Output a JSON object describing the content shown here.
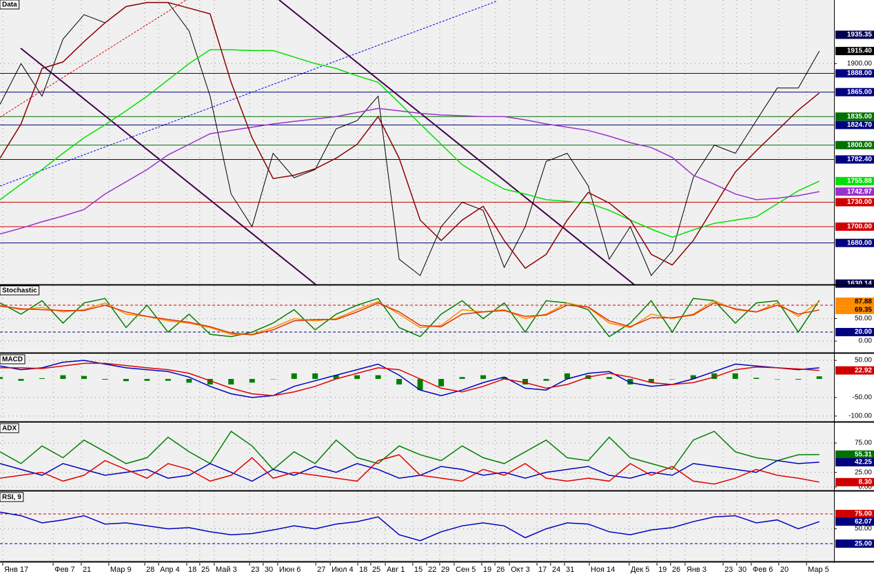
{
  "chart_data": [
    {
      "type": "line",
      "title": "Data",
      "xlim": [
        0,
        39.7
      ],
      "ylim": [
        1629,
        1978
      ],
      "yticks": [
        {
          "value": 1900,
          "label": "1900.00"
        }
      ],
      "levels": [
        {
          "value": 1888,
          "label": "1888.00",
          "color": "#000080"
        },
        {
          "value": 1865,
          "label": "1865.00",
          "color": "#000080"
        },
        {
          "value": 1835,
          "label": "1835.00",
          "color": "#007000"
        },
        {
          "value": 1824.7,
          "label": "1824.70",
          "color": "#000080"
        },
        {
          "value": 1800,
          "label": "1800.00",
          "color": "#007000"
        },
        {
          "value": 1782.4,
          "label": "1782.40",
          "color": "#000080"
        },
        {
          "value": 1730,
          "label": "1730.00",
          "color": "#d00000"
        },
        {
          "value": 1700,
          "label": "1700.00",
          "color": "#d00000"
        },
        {
          "value": 1680,
          "label": "1680.00",
          "color": "#000080"
        }
      ],
      "tags": [
        {
          "value": 1935.35,
          "label": "1935.35",
          "color": "#000050"
        },
        {
          "value": 1915.4,
          "label": "1915.40",
          "color": "#000000"
        },
        {
          "value": 1755.88,
          "label": "1755.88",
          "color": "#00e000"
        },
        {
          "value": 1742.97,
          "label": "1742.97",
          "color": "#9932cc"
        },
        {
          "value": 1630.14,
          "label": "1630.14",
          "color": "#000050"
        }
      ],
      "series": [
        {
          "color": "#000000",
          "values": [
            1850,
            1900,
            1860,
            1930,
            1960,
            1950,
            1970,
            1975,
            1975,
            1940,
            1860,
            1740,
            1700,
            1790,
            1760,
            1770,
            1820,
            1830,
            1860,
            1660,
            1640,
            1700,
            1730,
            1720,
            1650,
            1700,
            1780,
            1790,
            1750,
            1660,
            1700,
            1640,
            1670,
            1760,
            1800,
            1790,
            1830,
            1870,
            1870,
            1915.4
          ]
        },
        {
          "color": "#00e000",
          "values": [
            1733,
            1752,
            1770,
            1790,
            1809,
            1825,
            1842,
            1860,
            1880,
            1900,
            1917,
            1917,
            1916,
            1916,
            1908,
            1900,
            1894,
            1885,
            1877,
            1852,
            1826,
            1801,
            1776,
            1760,
            1746,
            1740,
            1733,
            1731,
            1729,
            1720,
            1708,
            1697,
            1687,
            1696,
            1704,
            1708,
            1712,
            1728,
            1744,
            1755.88
          ]
        },
        {
          "color": "#9932cc",
          "values": [
            1691,
            1698,
            1706,
            1713,
            1721,
            1740,
            1755,
            1770,
            1788,
            1801,
            1814,
            1818,
            1822,
            1826,
            1829,
            1832,
            1835,
            1840,
            1845,
            1842,
            1839,
            1837,
            1836,
            1835,
            1835,
            1831,
            1826,
            1822,
            1818,
            1811,
            1803,
            1797,
            1785,
            1763,
            1752,
            1740,
            1733,
            1735,
            1738,
            1742.97
          ]
        },
        {
          "color": "#8b0000",
          "values": [
            1784,
            1826,
            1894,
            1902,
            1927,
            1950,
            1970,
            1975,
            1975,
            1968,
            1961,
            1877,
            1809,
            1759,
            1763,
            1771,
            1784,
            1801,
            1835,
            1784,
            1708,
            1683,
            1708,
            1725,
            1683,
            1649,
            1666,
            1708,
            1742,
            1729,
            1708,
            1666,
            1653,
            1683,
            1725,
            1767,
            1793,
            1818,
            1843,
            1864
          ]
        }
      ]
    },
    {
      "type": "line",
      "title": "Stochastic",
      "xlim": [
        0,
        39.7
      ],
      "ylim": [
        -26,
        123
      ],
      "yticks": [
        {
          "value": 0,
          "label": "0.00"
        },
        {
          "value": 50,
          "label": "50.00"
        }
      ],
      "levels": [
        {
          "value": 80,
          "color": "#d00000",
          "dash": true
        },
        {
          "value": 20,
          "label": "20.00",
          "color": "#000080",
          "dash": true
        }
      ],
      "tags": [
        {
          "value": 87.88,
          "label": "87.88",
          "color": "#ff8c00"
        },
        {
          "value": 69.35,
          "label": "69.35",
          "color": "#ff8c00"
        }
      ],
      "series": [
        {
          "color": "#008000",
          "values": [
            85,
            60,
            90,
            40,
            85,
            95,
            30,
            80,
            20,
            60,
            15,
            10,
            20,
            40,
            70,
            25,
            60,
            80,
            95,
            30,
            10,
            60,
            90,
            50,
            85,
            20,
            90,
            85,
            70,
            10,
            40,
            90,
            20,
            95,
            90,
            40,
            85,
            90,
            20,
            91
          ]
        },
        {
          "color": "#ff8c00",
          "values": [
            80,
            70,
            75,
            65,
            70,
            85,
            60,
            55,
            45,
            40,
            30,
            15,
            15,
            30,
            50,
            45,
            50,
            70,
            88,
            60,
            30,
            35,
            70,
            65,
            70,
            50,
            60,
            85,
            75,
            40,
            30,
            60,
            50,
            60,
            90,
            70,
            65,
            85,
            55,
            87.88
          ]
        },
        {
          "color": "#e03000",
          "values": [
            78,
            72,
            70,
            68,
            68,
            80,
            65,
            55,
            48,
            42,
            32,
            18,
            14,
            25,
            45,
            48,
            48,
            65,
            85,
            65,
            35,
            32,
            60,
            65,
            68,
            55,
            58,
            80,
            76,
            45,
            32,
            52,
            52,
            58,
            85,
            72,
            65,
            80,
            60,
            69.35
          ]
        }
      ]
    },
    {
      "type": "line",
      "title": "MACD",
      "xlim": [
        0,
        39.7
      ],
      "ylim": [
        -115,
        65
      ],
      "yticks": [
        {
          "value": 50,
          "label": "50.00"
        },
        {
          "value": -50,
          "label": "-50.00"
        },
        {
          "value": -100,
          "label": "-100.00"
        }
      ],
      "levels": [],
      "tags": [
        {
          "value": 22.92,
          "label": "22.92",
          "color": "#d00000"
        }
      ],
      "series": [
        {
          "color": "#008000",
          "style": "bar",
          "values": [
            5,
            -5,
            2,
            10,
            8,
            -2,
            -6,
            -5,
            -5,
            -10,
            -15,
            -15,
            -10,
            0,
            15,
            15,
            10,
            10,
            10,
            -15,
            -30,
            -20,
            5,
            10,
            5,
            -15,
            -5,
            15,
            10,
            5,
            -15,
            -10,
            0,
            10,
            15,
            15,
            3,
            0,
            -2,
            7
          ]
        },
        {
          "color": "#0000c0",
          "values": [
            35,
            25,
            30,
            45,
            50,
            40,
            30,
            25,
            20,
            5,
            -20,
            -40,
            -50,
            -45,
            -20,
            -5,
            10,
            25,
            40,
            10,
            -30,
            -45,
            -30,
            -10,
            5,
            -25,
            -30,
            0,
            15,
            20,
            -10,
            -20,
            -15,
            0,
            20,
            40,
            35,
            30,
            25,
            30
          ]
        },
        {
          "color": "#e00000",
          "values": [
            30,
            30,
            28,
            35,
            42,
            42,
            36,
            30,
            25,
            15,
            -5,
            -25,
            -40,
            -45,
            -35,
            -20,
            0,
            15,
            30,
            25,
            0,
            -25,
            -35,
            -20,
            0,
            -10,
            -25,
            -15,
            5,
            15,
            5,
            -10,
            -15,
            -10,
            5,
            25,
            32,
            30,
            27,
            22.92
          ]
        }
      ]
    },
    {
      "type": "line",
      "title": "ADX",
      "xlim": [
        0,
        39.7
      ],
      "ylim": [
        -6,
        108
      ],
      "yticks": [
        {
          "value": 0,
          "label": "0.00"
        },
        {
          "value": 25,
          "label": "25.00"
        },
        {
          "value": 75,
          "label": "75.00"
        }
      ],
      "levels": [],
      "tags": [
        {
          "value": 55.31,
          "label": "55.31",
          "color": "#007000"
        },
        {
          "value": 42.25,
          "label": "42.25",
          "color": "#000080"
        },
        {
          "value": 8.3,
          "label": "8.30",
          "color": "#d00000"
        }
      ],
      "series": [
        {
          "color": "#008000",
          "values": [
            60,
            40,
            70,
            50,
            80,
            60,
            40,
            50,
            85,
            60,
            40,
            95,
            70,
            30,
            60,
            40,
            80,
            50,
            40,
            70,
            55,
            45,
            70,
            50,
            40,
            60,
            80,
            50,
            45,
            85,
            50,
            40,
            30,
            80,
            95,
            60,
            50,
            45,
            55,
            55.31
          ]
        },
        {
          "color": "#0000c0",
          "values": [
            40,
            30,
            20,
            40,
            30,
            20,
            25,
            30,
            15,
            20,
            40,
            25,
            10,
            30,
            20,
            35,
            25,
            40,
            30,
            15,
            20,
            35,
            30,
            20,
            25,
            15,
            25,
            30,
            35,
            20,
            15,
            25,
            20,
            40,
            35,
            30,
            25,
            45,
            40,
            42.25
          ]
        },
        {
          "color": "#e00000",
          "values": [
            15,
            20,
            25,
            10,
            20,
            45,
            30,
            15,
            40,
            30,
            10,
            20,
            50,
            15,
            25,
            20,
            15,
            10,
            45,
            55,
            20,
            15,
            10,
            30,
            20,
            40,
            15,
            10,
            15,
            10,
            40,
            20,
            35,
            10,
            5,
            15,
            30,
            20,
            15,
            8.3
          ]
        }
      ]
    },
    {
      "type": "line",
      "title": "RSI, 9",
      "xlim": [
        0,
        39.7
      ],
      "ylim": [
        -5,
        111
      ],
      "yticks": [
        {
          "value": 50,
          "label": "50.00"
        }
      ],
      "levels": [
        {
          "value": 75,
          "label": "75.00",
          "color": "#d00000",
          "dash": true
        },
        {
          "value": 25,
          "label": "25.00",
          "color": "#000080",
          "dash": true
        }
      ],
      "tags": [
        {
          "value": 62.07,
          "label": "62.07",
          "color": "#000080"
        }
      ],
      "series": [
        {
          "color": "#0000c0",
          "values": [
            78,
            72,
            60,
            65,
            72,
            58,
            60,
            55,
            50,
            52,
            45,
            40,
            42,
            48,
            55,
            50,
            58,
            62,
            70,
            40,
            30,
            45,
            55,
            60,
            55,
            35,
            50,
            60,
            58,
            45,
            40,
            48,
            52,
            62,
            70,
            72,
            60,
            65,
            50,
            62.07
          ]
        }
      ],
      "xticks": [
        {
          "value": 0.13,
          "label": "Янв 17"
        },
        {
          "value": 2.53,
          "label": "Фев 7"
        },
        {
          "value": 3.87,
          "label": "21"
        },
        {
          "value": 5.18,
          "label": "Мар 9"
        },
        {
          "value": 6.89,
          "label": "28"
        },
        {
          "value": 7.55,
          "label": "Апр 4"
        },
        {
          "value": 8.89,
          "label": "18"
        },
        {
          "value": 9.51,
          "label": "25"
        },
        {
          "value": 10.2,
          "label": "Май 3"
        },
        {
          "value": 11.88,
          "label": "23"
        },
        {
          "value": 12.53,
          "label": "30"
        },
        {
          "value": 13.22,
          "label": "Июн 6"
        },
        {
          "value": 15.03,
          "label": "27"
        },
        {
          "value": 15.72,
          "label": "Июл 4"
        },
        {
          "value": 17.03,
          "label": "18"
        },
        {
          "value": 17.65,
          "label": "25"
        },
        {
          "value": 18.34,
          "label": "Авг 1"
        },
        {
          "value": 19.65,
          "label": "15"
        },
        {
          "value": 20.31,
          "label": "22"
        },
        {
          "value": 20.93,
          "label": "29"
        },
        {
          "value": 21.62,
          "label": "Сен 5"
        },
        {
          "value": 22.93,
          "label": "19"
        },
        {
          "value": 23.56,
          "label": "26"
        },
        {
          "value": 24.25,
          "label": "Окт 3"
        },
        {
          "value": 25.56,
          "label": "17"
        },
        {
          "value": 26.21,
          "label": "24"
        },
        {
          "value": 26.87,
          "label": "31"
        },
        {
          "value": 28.05,
          "label": "Ноя 14"
        },
        {
          "value": 29.95,
          "label": "Дек 5"
        },
        {
          "value": 31.27,
          "label": "19"
        },
        {
          "value": 31.92,
          "label": "26"
        },
        {
          "value": 32.61,
          "label": "Янв 3"
        },
        {
          "value": 34.42,
          "label": "23"
        },
        {
          "value": 35.07,
          "label": "30"
        },
        {
          "value": 35.76,
          "label": "Фев 6"
        },
        {
          "value": 37.07,
          "label": "20"
        },
        {
          "value": 38.39,
          "label": "Мар 5"
        }
      ]
    }
  ]
}
